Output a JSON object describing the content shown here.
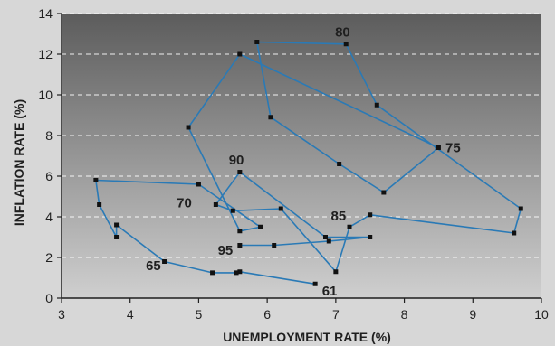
{
  "chart_data": {
    "type": "line",
    "title": "",
    "xlabel": "UNEMPLOYMENT RATE (%)",
    "ylabel": "INFLATION RATE (%)",
    "xlim": [
      3,
      10
    ],
    "ylim": [
      0,
      14
    ],
    "xticks": [
      3,
      4,
      5,
      6,
      7,
      8,
      9,
      10
    ],
    "yticks": [
      0,
      2,
      4,
      6,
      8,
      10,
      12,
      14
    ],
    "grid": "horizontal dashed",
    "series_color": "#2a7ab6",
    "marker_color": "#111111",
    "background_color": "#d7d7d7",
    "plot_gradient": [
      "#5c5c5c",
      "#cfcfcf"
    ],
    "series": [
      {
        "points": [
          {
            "year": "1961",
            "x": 6.7,
            "y": 0.7
          },
          {
            "year": "1962",
            "x": 5.6,
            "y": 1.3
          },
          {
            "year": "1963",
            "x": 5.55,
            "y": 1.25
          },
          {
            "year": "1964",
            "x": 5.2,
            "y": 1.25
          },
          {
            "year": "1965",
            "x": 4.5,
            "y": 1.8
          },
          {
            "year": "1966",
            "x": 3.8,
            "y": 3.6
          },
          {
            "year": "1967",
            "x": 3.8,
            "y": 3.0
          },
          {
            "year": "1968",
            "x": 3.55,
            "y": 4.6
          },
          {
            "year": "1969",
            "x": 3.5,
            "y": 5.8
          },
          {
            "year": "1970",
            "x": 5.0,
            "y": 5.6
          },
          {
            "year": "1971",
            "x": 5.9,
            "y": 3.5
          },
          {
            "year": "1972",
            "x": 5.6,
            "y": 3.3
          },
          {
            "year": "1973",
            "x": 4.85,
            "y": 8.4
          },
          {
            "year": "1974",
            "x": 5.6,
            "y": 12.0
          },
          {
            "year": "1975",
            "x": 8.5,
            "y": 7.4
          },
          {
            "year": "1976",
            "x": 7.7,
            "y": 5.2
          },
          {
            "year": "1977",
            "x": 7.05,
            "y": 6.6
          },
          {
            "year": "1978",
            "x": 6.05,
            "y": 8.9
          },
          {
            "year": "1979",
            "x": 5.85,
            "y": 12.6
          },
          {
            "year": "1980",
            "x": 7.15,
            "y": 12.5
          },
          {
            "year": "1981",
            "x": 7.6,
            "y": 9.5
          },
          {
            "year": "1982",
            "x": 9.7,
            "y": 4.4
          },
          {
            "year": "1983",
            "x": 9.6,
            "y": 3.2
          },
          {
            "year": "1984",
            "x": 7.5,
            "y": 4.1
          },
          {
            "year": "1985",
            "x": 7.2,
            "y": 3.5
          },
          {
            "year": "1986",
            "x": 7.0,
            "y": 1.3
          },
          {
            "year": "1987",
            "x": 6.2,
            "y": 4.4
          },
          {
            "year": "1988",
            "x": 5.5,
            "y": 4.3
          },
          {
            "year": "1989",
            "x": 5.25,
            "y": 4.6
          },
          {
            "year": "1990",
            "x": 5.6,
            "y": 6.2
          },
          {
            "year": "1991",
            "x": 6.85,
            "y": 3.0
          },
          {
            "year": "1992",
            "x": 7.5,
            "y": 3.0
          },
          {
            "year": "1993",
            "x": 6.9,
            "y": 2.8
          },
          {
            "year": "1994",
            "x": 6.1,
            "y": 2.6
          },
          {
            "year": "1995",
            "x": 5.6,
            "y": 2.6
          }
        ]
      }
    ],
    "point_labels": [
      {
        "text": "61",
        "year": "1961",
        "anchor": "start",
        "dx": 0.1,
        "dy": -0.35
      },
      {
        "text": "65",
        "year": "1965",
        "anchor": "end",
        "dx": -0.05,
        "dy": -0.2
      },
      {
        "text": "70",
        "year": "1970",
        "anchor": "end",
        "dx": -0.1,
        "dy": -0.9
      },
      {
        "text": "75",
        "year": "1975",
        "anchor": "start",
        "dx": 0.1,
        "dy": 0.0
      },
      {
        "text": "80",
        "year": "1980",
        "anchor": "middle",
        "dx": -0.05,
        "dy": 0.6
      },
      {
        "text": "85",
        "year": "1985",
        "anchor": "end",
        "dx": -0.05,
        "dy": 0.55
      },
      {
        "text": "90",
        "year": "1990",
        "anchor": "middle",
        "dx": -0.05,
        "dy": 0.6
      },
      {
        "text": "95",
        "year": "1995",
        "anchor": "end",
        "dx": -0.1,
        "dy": -0.25
      }
    ]
  }
}
